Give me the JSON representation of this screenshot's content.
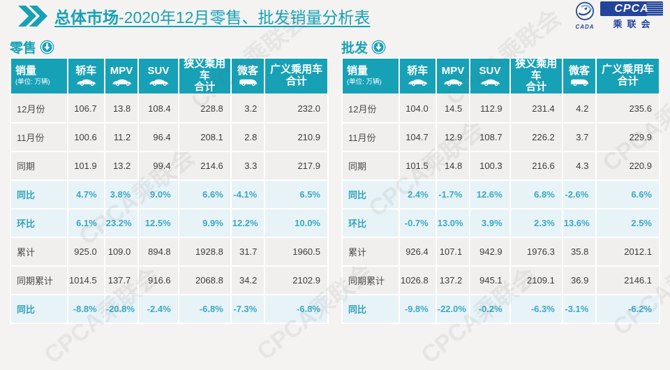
{
  "header": {
    "title_strong": "总体市场",
    "title_rest": "-2020年12月零售、批发销量分析表",
    "logo": {
      "cpca": "CPCA",
      "cada": "CADA",
      "org": "乘联会"
    }
  },
  "colors": {
    "accent": "#17a1b6",
    "header_bg": "#17a1b6",
    "percent_text": "#3aa9c4",
    "percent_row_bg": "#e8f3f8",
    "row_bg": "#f0efed",
    "logo_navy": "#24449c"
  },
  "watermark": {
    "text": "CPCA乘联会"
  },
  "table_columns": {
    "sales_label": "销量",
    "sales_unit": "(单位: 万辆)",
    "cols": [
      {
        "label": "轿车",
        "icon": "car-icon"
      },
      {
        "label": "MPV",
        "icon": "car-icon"
      },
      {
        "label": "SUV",
        "icon": "car-icon"
      },
      {
        "label": "狭义乘用车",
        "label2": "合计"
      },
      {
        "label": "微客",
        "icon": "van-icon"
      },
      {
        "label": "广义乘用车",
        "label2": "合计"
      }
    ]
  },
  "retail": {
    "section_label": "零售",
    "rows": [
      {
        "label": "12月份",
        "type": "normal",
        "values": [
          "106.7",
          "13.8",
          "108.4",
          "228.8",
          "3.2",
          "232.0"
        ]
      },
      {
        "label": "11月份",
        "type": "normal",
        "values": [
          "100.6",
          "11.2",
          "96.4",
          "208.1",
          "2.8",
          "210.9"
        ]
      },
      {
        "label": "同期",
        "type": "normal",
        "values": [
          "101.9",
          "13.2",
          "99.4",
          "214.6",
          "3.3",
          "217.9"
        ]
      },
      {
        "label": "同比",
        "type": "percent",
        "values": [
          "4.7%",
          "3.8%",
          "9.0%",
          "6.6%",
          "-4.1%",
          "6.5%"
        ]
      },
      {
        "label": "环比",
        "type": "percent",
        "values": [
          "6.1%",
          "23.2%",
          "12.5%",
          "9.9%",
          "12.2%",
          "10.0%"
        ]
      },
      {
        "label": "累计",
        "type": "normal",
        "values": [
          "925.0",
          "109.0",
          "894.8",
          "1928.8",
          "31.7",
          "1960.5"
        ]
      },
      {
        "label": "同期累计",
        "type": "normal",
        "values": [
          "1014.5",
          "137.7",
          "916.6",
          "2068.8",
          "34.2",
          "2102.9"
        ]
      },
      {
        "label": "同比",
        "type": "percent",
        "values": [
          "-8.8%",
          "-20.8%",
          "-2.4%",
          "-6.8%",
          "-7.3%",
          "-6.8%"
        ]
      }
    ]
  },
  "wholesale": {
    "section_label": "批发",
    "rows": [
      {
        "label": "12月份",
        "type": "normal",
        "values": [
          "104.0",
          "14.5",
          "112.9",
          "231.4",
          "4.2",
          "235.6"
        ]
      },
      {
        "label": "11月份",
        "type": "normal",
        "values": [
          "104.7",
          "12.9",
          "108.7",
          "226.2",
          "3.7",
          "229.9"
        ]
      },
      {
        "label": "同期",
        "type": "normal",
        "values": [
          "101.5",
          "14.8",
          "100.3",
          "216.6",
          "4.3",
          "220.9"
        ]
      },
      {
        "label": "同比",
        "type": "percent",
        "values": [
          "2.4%",
          "-1.7%",
          "12.6%",
          "6.8%",
          "-2.6%",
          "6.6%"
        ]
      },
      {
        "label": "环比",
        "type": "percent",
        "values": [
          "-0.7%",
          "13.0%",
          "3.9%",
          "2.3%",
          "13.6%",
          "2.5%"
        ]
      },
      {
        "label": "累计",
        "type": "normal",
        "values": [
          "926.4",
          "107.1",
          "942.9",
          "1976.3",
          "35.8",
          "2012.1"
        ]
      },
      {
        "label": "同期累计",
        "type": "normal",
        "values": [
          "1026.8",
          "137.2",
          "945.1",
          "2109.1",
          "36.9",
          "2146.1"
        ]
      },
      {
        "label": "同比",
        "type": "percent",
        "values": [
          "-9.8%",
          "-22.0%",
          "-0.2%",
          "-6.3%",
          "-3.1%",
          "-6.2%"
        ]
      }
    ]
  },
  "chart_data": [
    {
      "type": "table",
      "title": "零售",
      "columns": [
        "销量(单位:万辆)",
        "轿车",
        "MPV",
        "SUV",
        "狭义乘用车合计",
        "微客",
        "广义乘用车合计"
      ],
      "rows": [
        [
          "12月份",
          106.7,
          13.8,
          108.4,
          228.8,
          3.2,
          232.0
        ],
        [
          "11月份",
          100.6,
          11.2,
          96.4,
          208.1,
          2.8,
          210.9
        ],
        [
          "同期",
          101.9,
          13.2,
          99.4,
          214.6,
          3.3,
          217.9
        ],
        [
          "同比",
          "4.7%",
          "3.8%",
          "9.0%",
          "6.6%",
          "-4.1%",
          "6.5%"
        ],
        [
          "环比",
          "6.1%",
          "23.2%",
          "12.5%",
          "9.9%",
          "12.2%",
          "10.0%"
        ],
        [
          "累计",
          925.0,
          109.0,
          894.8,
          1928.8,
          31.7,
          1960.5
        ],
        [
          "同期累计",
          1014.5,
          137.7,
          916.6,
          2068.8,
          34.2,
          2102.9
        ],
        [
          "同比",
          "-8.8%",
          "-20.8%",
          "-2.4%",
          "-6.8%",
          "-7.3%",
          "-6.8%"
        ]
      ]
    },
    {
      "type": "table",
      "title": "批发",
      "columns": [
        "销量(单位:万辆)",
        "轿车",
        "MPV",
        "SUV",
        "狭义乘用车合计",
        "微客",
        "广义乘用车合计"
      ],
      "rows": [
        [
          "12月份",
          104.0,
          14.5,
          112.9,
          231.4,
          4.2,
          235.6
        ],
        [
          "11月份",
          104.7,
          12.9,
          108.7,
          226.2,
          3.7,
          229.9
        ],
        [
          "同期",
          101.5,
          14.8,
          100.3,
          216.6,
          4.3,
          220.9
        ],
        [
          "同比",
          "2.4%",
          "-1.7%",
          "12.6%",
          "6.8%",
          "-2.6%",
          "6.6%"
        ],
        [
          "环比",
          "-0.7%",
          "13.0%",
          "3.9%",
          "2.3%",
          "13.6%",
          "2.5%"
        ],
        [
          "累计",
          926.4,
          107.1,
          942.9,
          1976.3,
          35.8,
          2012.1
        ],
        [
          "同期累计",
          1026.8,
          137.2,
          945.1,
          2109.1,
          36.9,
          2146.1
        ],
        [
          "同比",
          "-9.8%",
          "-22.0%",
          "-0.2%",
          "-6.3%",
          "-3.1%",
          "-6.2%"
        ]
      ]
    }
  ]
}
